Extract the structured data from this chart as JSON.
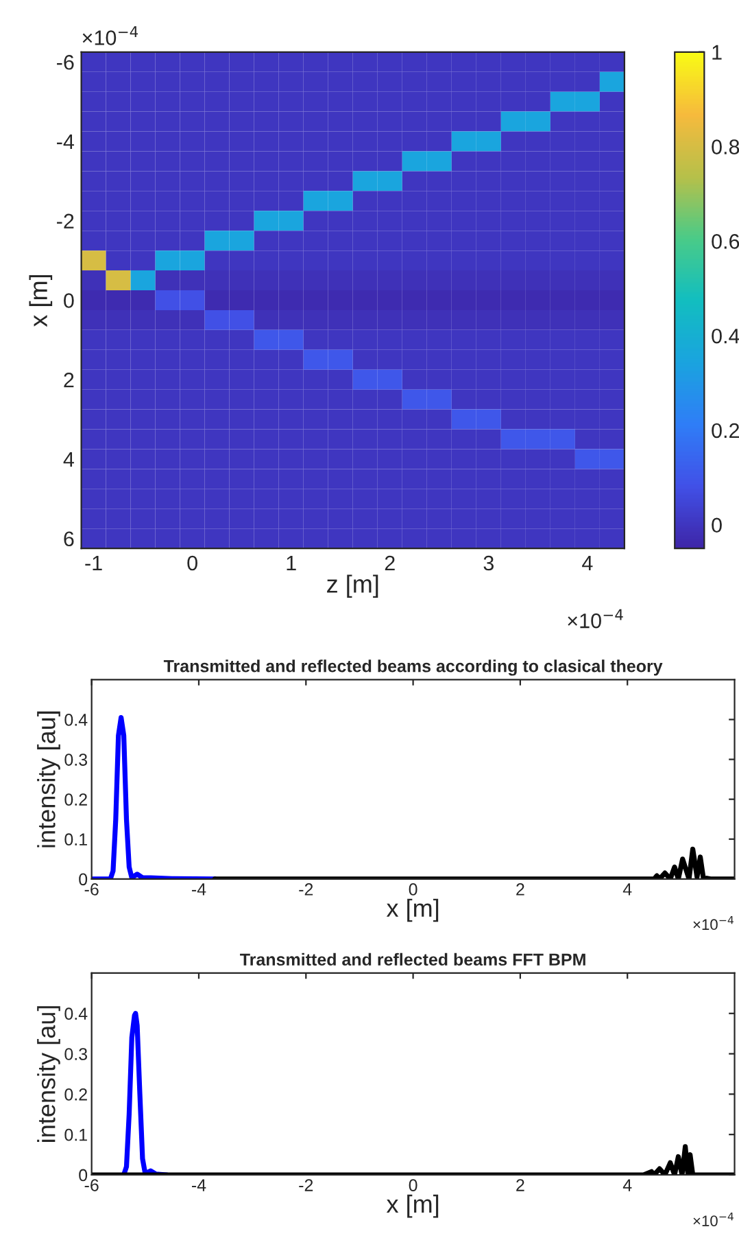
{
  "chart_data": [
    {
      "type": "heatmap",
      "xlabel": "z [m]",
      "ylabel": "x [m]",
      "annotations": [
        "×10$^{−4}$",
        "×10$^{−4}$"
      ],
      "categories": [
        "-1",
        null,
        null,
        null,
        "0",
        null,
        null,
        null,
        "1",
        null,
        null,
        null,
        "2",
        null,
        null,
        null,
        "3",
        null,
        null,
        null,
        "4",
        null
      ],
      "y_categories": [
        "-6",
        null,
        null,
        null,
        "-4",
        null,
        null,
        null,
        "-2",
        null,
        null,
        null,
        "0",
        null,
        null,
        null,
        "2",
        null,
        null,
        null,
        "4",
        null,
        null,
        null,
        "6"
      ],
      "clim": [
        -0.05,
        1
      ],
      "cticks": [
        0,
        0.2,
        0.4,
        0.6,
        0.8,
        1
      ],
      "cells": [
        [
          0,
          0,
          0,
          0,
          0,
          0,
          0,
          0,
          0,
          0,
          0,
          0,
          0,
          0,
          0,
          0,
          0,
          0,
          0,
          0,
          0,
          0
        ],
        [
          0,
          0,
          0,
          0,
          0,
          0,
          0,
          0,
          0,
          0,
          0,
          0,
          0,
          0,
          0,
          0,
          0,
          0,
          0,
          0,
          0,
          0.35
        ],
        [
          0,
          0,
          0,
          0,
          0,
          0,
          0,
          0,
          0,
          0,
          0,
          0,
          0,
          0,
          0,
          0,
          0,
          0,
          0,
          0.35,
          0.35,
          0
        ],
        [
          0,
          0,
          0,
          0,
          0,
          0,
          0,
          0,
          0,
          0,
          0,
          0,
          0,
          0,
          0,
          0,
          0,
          0.35,
          0.35,
          0,
          0,
          0
        ],
        [
          0,
          0,
          0,
          0,
          0,
          0,
          0,
          0,
          0,
          0,
          0,
          0,
          0,
          0,
          0,
          0.35,
          0.35,
          0,
          0,
          0,
          0,
          0
        ],
        [
          0,
          0,
          0,
          0,
          0,
          0,
          0,
          0,
          0,
          0,
          0,
          0,
          0,
          0.35,
          0.35,
          0,
          0,
          0,
          0,
          0,
          0,
          0
        ],
        [
          0,
          0,
          0,
          0,
          0,
          0,
          0,
          0,
          0,
          0,
          0,
          0.35,
          0.35,
          0,
          0,
          0,
          0,
          0,
          0,
          0,
          0,
          0
        ],
        [
          0,
          0,
          0,
          0,
          0,
          0,
          0,
          0,
          0,
          0.35,
          0.35,
          0,
          0,
          0,
          0,
          0,
          0,
          0,
          0,
          0,
          0,
          0
        ],
        [
          0,
          0,
          0,
          0,
          0,
          0,
          0,
          0.35,
          0.35,
          0,
          0,
          0,
          0,
          0,
          0,
          0,
          0,
          0,
          0,
          0,
          0,
          0
        ],
        [
          0,
          0,
          0,
          0,
          0,
          0.35,
          0.35,
          0,
          0,
          0,
          0,
          0,
          0,
          0,
          0,
          0,
          0,
          0,
          0,
          0,
          0,
          0
        ],
        [
          0.8,
          0,
          0,
          0.35,
          0.35,
          0,
          0,
          0,
          0,
          0,
          0,
          0,
          0,
          0,
          0,
          0,
          0,
          0,
          0,
          0,
          0,
          0
        ],
        [
          -0.015,
          0.8,
          0.35,
          -0.015,
          -0.015,
          -0.015,
          -0.015,
          -0.015,
          -0.015,
          -0.015,
          -0.015,
          -0.015,
          -0.015,
          -0.015,
          -0.015,
          -0.015,
          -0.015,
          -0.015,
          -0.015,
          -0.015,
          -0.015,
          -0.015
        ],
        [
          -0.03,
          -0.03,
          -0.03,
          0.08,
          0.08,
          -0.03,
          -0.03,
          -0.03,
          -0.03,
          -0.03,
          -0.03,
          -0.03,
          -0.03,
          -0.03,
          -0.03,
          -0.03,
          -0.03,
          -0.03,
          -0.03,
          -0.03,
          -0.03,
          -0.03
        ],
        [
          -0.015,
          -0.015,
          -0.015,
          -0.015,
          -0.015,
          0.08,
          0.08,
          -0.015,
          -0.015,
          -0.015,
          -0.015,
          -0.015,
          -0.015,
          -0.015,
          -0.015,
          -0.015,
          -0.015,
          -0.015,
          -0.015,
          -0.015,
          -0.015,
          -0.015
        ],
        [
          0,
          0,
          0,
          0,
          0,
          0,
          0,
          0.1,
          0.1,
          0,
          0,
          0,
          0,
          0,
          0,
          0,
          0,
          0,
          0,
          0,
          0,
          0
        ],
        [
          0,
          0,
          0,
          0,
          0,
          0,
          0,
          0,
          0,
          0.1,
          0.1,
          0,
          0,
          0,
          0,
          0,
          0,
          0,
          0,
          0,
          0,
          0
        ],
        [
          0,
          0,
          0,
          0,
          0,
          0,
          0,
          0,
          0,
          0,
          0,
          0.1,
          0.1,
          0,
          0,
          0,
          0,
          0,
          0,
          0,
          0,
          0
        ],
        [
          0,
          0,
          0,
          0,
          0,
          0,
          0,
          0,
          0,
          0,
          0,
          0,
          0,
          0.1,
          0.1,
          0,
          0,
          0,
          0,
          0,
          0,
          0
        ],
        [
          0,
          0,
          0,
          0,
          0,
          0,
          0,
          0,
          0,
          0,
          0,
          0,
          0,
          0,
          0,
          0.1,
          0.1,
          0,
          0,
          0,
          0,
          0
        ],
        [
          0,
          0,
          0,
          0,
          0,
          0,
          0,
          0,
          0,
          0,
          0,
          0,
          0,
          0,
          0,
          0,
          0,
          0.1,
          0.1,
          0.1,
          0,
          0
        ],
        [
          0,
          0,
          0,
          0,
          0,
          0,
          0,
          0,
          0,
          0,
          0,
          0,
          0,
          0,
          0,
          0,
          0,
          0,
          0,
          0,
          0.1,
          0.1
        ],
        [
          0,
          0,
          0,
          0,
          0,
          0,
          0,
          0,
          0,
          0,
          0,
          0,
          0,
          0,
          0,
          0,
          0,
          0,
          0,
          0,
          0,
          0
        ],
        [
          0,
          0,
          0,
          0,
          0,
          0,
          0,
          0,
          0,
          0,
          0,
          0,
          0,
          0,
          0,
          0,
          0,
          0,
          0,
          0,
          0,
          0
        ],
        [
          0,
          0,
          0,
          0,
          0,
          0,
          0,
          0,
          0,
          0,
          0,
          0,
          0,
          0,
          0,
          0,
          0,
          0,
          0,
          0,
          0,
          0
        ],
        [
          0,
          0,
          0,
          0,
          0,
          0,
          0,
          0,
          0,
          0,
          0,
          0,
          0,
          0,
          0,
          0,
          0,
          0,
          0,
          0,
          0,
          0
        ]
      ]
    },
    {
      "type": "line",
      "title": "Transmitted and reflected beams according to clasical theory",
      "xlabel": "x [m]",
      "ylabel": "intensity [au]",
      "annotations": [
        "×10$^{−4}$"
      ],
      "xlim": [
        -6,
        6
      ],
      "ylim": [
        0,
        0.5
      ],
      "xticks": [
        -6,
        -4,
        -2,
        0,
        2,
        4
      ],
      "yticks": [
        0,
        0.1,
        0.2,
        0.3,
        0.4
      ],
      "series": [
        {
          "color": "#0000ff",
          "x": [
            -6,
            -5.65,
            -5.6,
            -5.55,
            -5.5,
            -5.45,
            -5.4,
            -5.35,
            -5.3,
            -5.25,
            -5.15,
            -5.05,
            -4.9,
            -4.5,
            -3.7
          ],
          "values": [
            0,
            0,
            0.02,
            0.15,
            0.36,
            0.405,
            0.36,
            0.15,
            0.03,
            0.003,
            0.012,
            0.003,
            0.003,
            0.001,
            0
          ]
        },
        {
          "color": "#000000",
          "x": [
            -3.7,
            3.6,
            4.5,
            4.55,
            4.6,
            4.7,
            4.8,
            4.88,
            4.95,
            5.03,
            5.15,
            5.22,
            5.3,
            5.36,
            5.42,
            5.48,
            5.55,
            6
          ],
          "values": [
            0,
            0,
            0,
            0.008,
            0,
            0.015,
            0,
            0.03,
            0,
            0.05,
            0,
            0.075,
            0.005,
            0.055,
            0,
            0.002,
            0,
            0
          ]
        }
      ]
    },
    {
      "type": "line",
      "title": "Transmitted and reflected beams FFT BPM",
      "xlabel": "x [m]",
      "ylabel": "intensity [au]",
      "annotations": [
        "×10$^{−4}$"
      ],
      "xlim": [
        -6,
        6
      ],
      "ylim": [
        0,
        0.5
      ],
      "xticks": [
        -6,
        -4,
        -2,
        0,
        2,
        4
      ],
      "yticks": [
        0,
        0.1,
        0.2,
        0.3,
        0.4
      ],
      "series": [
        {
          "color": "#0000ff",
          "x": [
            -5.4,
            -5.35,
            -5.3,
            -5.25,
            -5.2,
            -5.18,
            -5.15,
            -5.1,
            -5.05,
            -5.0,
            -4.9,
            -4.8,
            -4.6
          ],
          "values": [
            0,
            0.02,
            0.15,
            0.34,
            0.395,
            0.4,
            0.37,
            0.2,
            0.04,
            0.003,
            0.01,
            0.002,
            0
          ]
        },
        {
          "color": "#000000",
          "x": [
            -6,
            -5.4,
            -4.6,
            4.3,
            4.45,
            4.5,
            4.6,
            4.7,
            4.8,
            4.88,
            4.95,
            5.02,
            5.08,
            5.13,
            5.17,
            5.22,
            5.3,
            6
          ],
          "values": [
            0,
            0,
            0,
            0,
            0.008,
            0,
            0.015,
            0,
            0.03,
            0,
            0.045,
            0,
            0.07,
            0,
            0.05,
            0,
            0,
            0
          ]
        }
      ]
    }
  ]
}
